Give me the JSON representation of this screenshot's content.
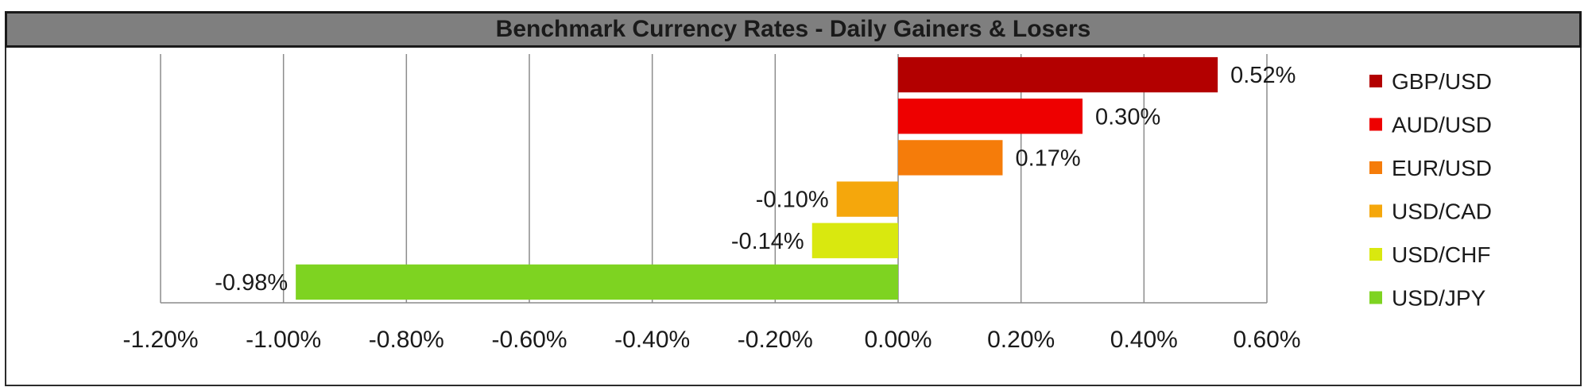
{
  "chart_data": {
    "type": "bar",
    "orientation": "horizontal",
    "title": "Benchmark Currency Rates - Daily Gainers & Losers",
    "categories": [
      "GBP/USD",
      "AUD/USD",
      "EUR/USD",
      "USD/CAD",
      "USD/CHF",
      "USD/JPY"
    ],
    "values": [
      0.52,
      0.3,
      0.17,
      -0.1,
      -0.14,
      -0.98
    ],
    "value_labels": [
      "0.52%",
      "0.30%",
      "0.17%",
      "-0.10%",
      "-0.14%",
      "-0.98%"
    ],
    "colors": [
      "#b30000",
      "#ee0000",
      "#f57c0a",
      "#f5a70c",
      "#d9e80f",
      "#7ed321"
    ],
    "xlim": [
      -1.2,
      0.6
    ],
    "xticks": [
      -1.2,
      -1.0,
      -0.8,
      -0.6,
      -0.4,
      -0.2,
      0.0,
      0.2,
      0.4,
      0.6
    ],
    "xtick_labels": [
      "-1.20%",
      "-1.00%",
      "-0.80%",
      "-0.60%",
      "-0.40%",
      "-0.20%",
      "0.00%",
      "0.20%",
      "0.40%",
      "0.60%"
    ],
    "grid": "vertical",
    "legend_position": "right",
    "xlabel": "",
    "ylabel": ""
  }
}
